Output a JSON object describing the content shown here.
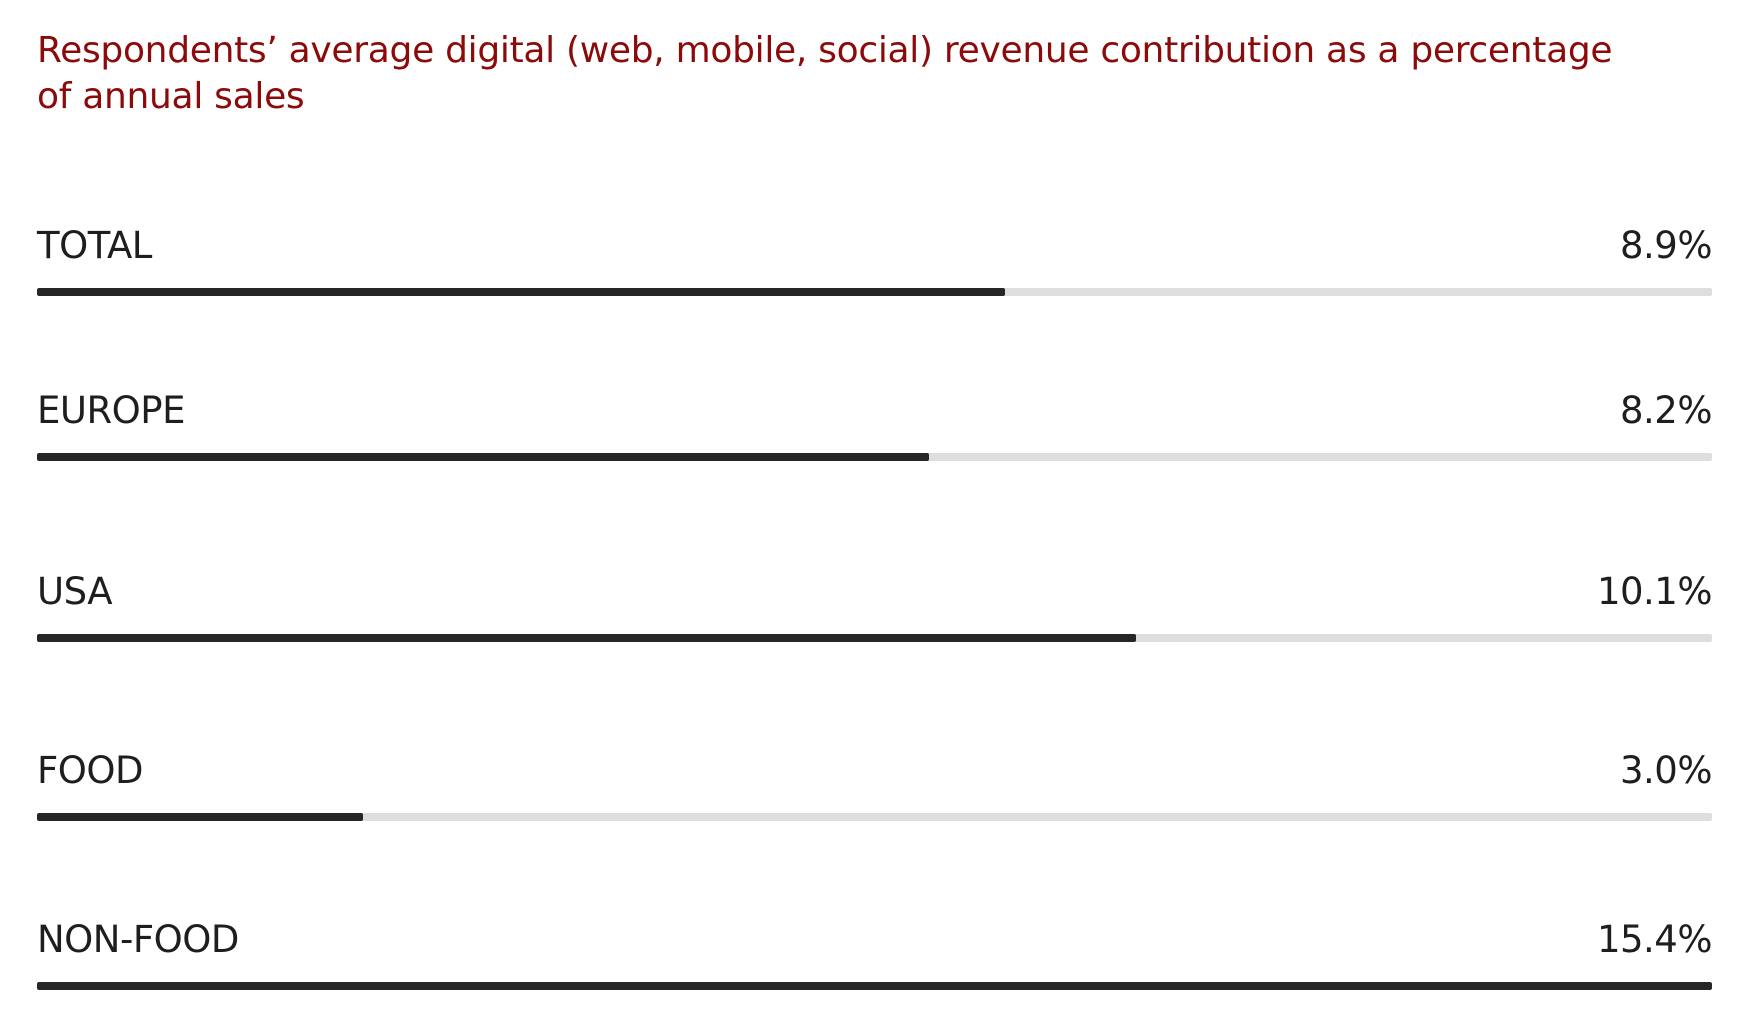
{
  "chart_data": {
    "type": "bar",
    "orientation": "horizontal",
    "title": "Respondents’ average digital (web, mobile, social) revenue contribution as a percentage of annual sales",
    "categories": [
      "TOTAL",
      "EUROPE",
      "USA",
      "FOOD",
      "NON-FOOD"
    ],
    "values": [
      8.9,
      8.2,
      10.1,
      3.0,
      15.4
    ],
    "value_labels": [
      "8.9%",
      "8.2%",
      "10.1%",
      "3.0%",
      "15.4%"
    ],
    "xlim": [
      0,
      15.4
    ],
    "unit": "%",
    "grid": false,
    "legend": "none"
  },
  "colors": {
    "title": "#8b0a0a",
    "text": "#1e1e1e",
    "bar_fill": "#262626",
    "bar_track": "#dedede"
  }
}
